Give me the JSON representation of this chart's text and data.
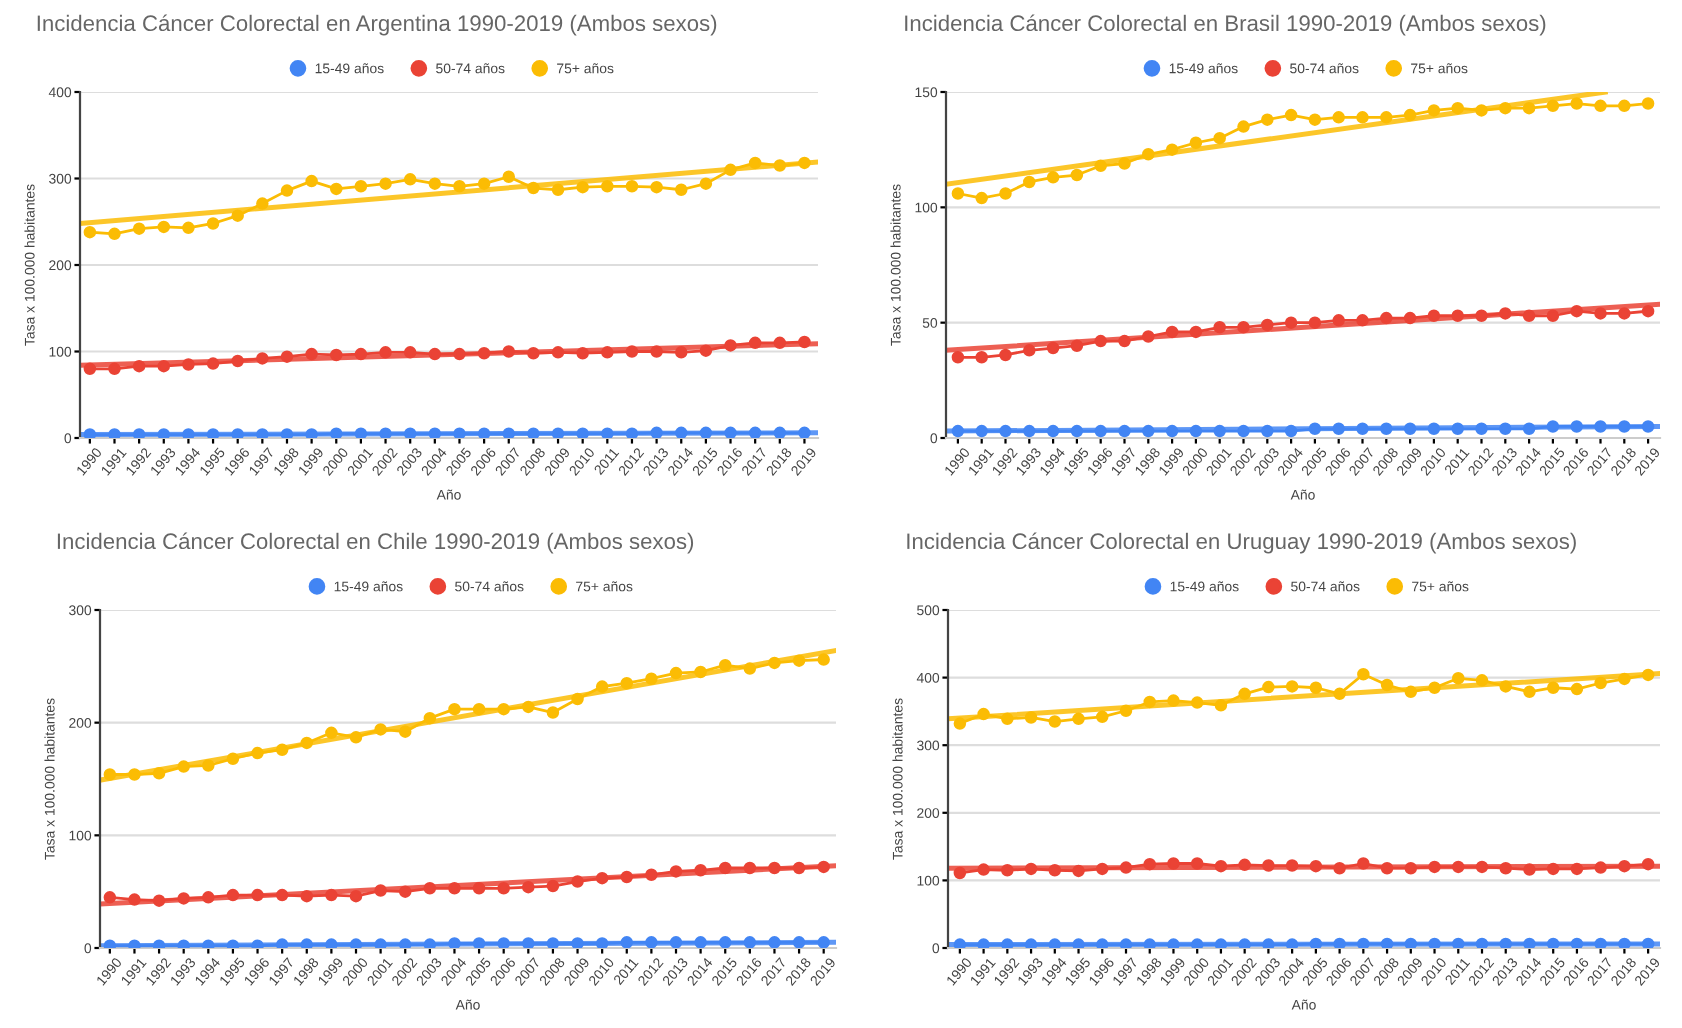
{
  "chart_data": [
    {
      "type": "line",
      "title": "Incidencia Cáncer Colorectal en Argentina 1990-2019 (Ambos sexos)",
      "xlabel": "Año",
      "ylabel": "Tasa x 100.000 habitantes",
      "x": [
        1990,
        1991,
        1992,
        1993,
        1994,
        1995,
        1996,
        1997,
        1998,
        1999,
        2000,
        2001,
        2002,
        2003,
        2004,
        2005,
        2006,
        2007,
        2008,
        2009,
        2010,
        2011,
        2012,
        2013,
        2014,
        2015,
        2016,
        2017,
        2018,
        2019
      ],
      "xlim": [
        1989.6,
        2019.55
      ],
      "xticks": [
        1990,
        1991,
        1992,
        1993,
        1994,
        1995,
        1996,
        1997,
        1998,
        1999,
        2000,
        2001,
        2002,
        2003,
        2004,
        2005,
        2006,
        2007,
        2008,
        2009,
        2010,
        2011,
        2012,
        2013,
        2014,
        2015,
        2016,
        2017,
        2018,
        2019
      ],
      "ylim": [
        0,
        400
      ],
      "yticks": [
        0,
        100,
        200,
        300,
        400
      ],
      "grid": "y",
      "legend": "top",
      "marker": "circle",
      "series": [
        {
          "name": "15-49 años",
          "color": "#4285f4",
          "values": [
            4,
            4,
            4,
            4,
            4,
            4,
            4,
            4,
            4,
            4,
            5,
            5,
            5,
            5,
            5,
            5,
            5,
            5,
            5,
            5,
            5,
            5,
            5,
            6,
            6,
            6,
            6,
            6,
            6,
            6
          ]
        },
        {
          "name": "50-74 años",
          "color": "#ea4335",
          "values": [
            80,
            80,
            83,
            83,
            85,
            86,
            89,
            92,
            94,
            97,
            96,
            97,
            99,
            99,
            97,
            97,
            98,
            100,
            98,
            99,
            98,
            99,
            100,
            100,
            99,
            101,
            107,
            110,
            110,
            111
          ]
        },
        {
          "name": "75+ años",
          "color": "#fbbc04",
          "values": [
            238,
            236,
            242,
            244,
            243,
            248,
            257,
            271,
            286,
            297,
            288,
            291,
            294,
            299,
            294,
            291,
            294,
            302,
            289,
            287,
            290,
            291,
            291,
            290,
            287,
            294,
            310,
            318,
            315,
            318
          ]
        },
        {
          "type": "line",
          "color": "#4285f4",
          "marker": "none",
          "x": [
            1989.6,
            2019.55
          ],
          "values": [
            4,
            6
          ]
        },
        {
          "type": "line",
          "color": "#ea4335",
          "marker": "none",
          "x": [
            1989.6,
            2019.55
          ],
          "values": [
            84,
            109
          ]
        },
        {
          "type": "line",
          "color": "#fbbc04",
          "marker": "none",
          "x": [
            1989.6,
            2019.55
          ],
          "values": [
            248,
            319
          ]
        }
      ]
    },
    {
      "type": "line",
      "title": "Incidencia Cáncer Colorectal en Brasil 1990-2019 (Ambos sexos)",
      "xlabel": "Año",
      "ylabel": "Tasa x 100.000 habitantes",
      "x": [
        1990,
        1991,
        1992,
        1993,
        1994,
        1995,
        1996,
        1997,
        1998,
        1999,
        2000,
        2001,
        2002,
        2003,
        2004,
        2005,
        2006,
        2007,
        2008,
        2009,
        2010,
        2011,
        2012,
        2013,
        2014,
        2015,
        2016,
        2017,
        2018,
        2019
      ],
      "xlim": [
        1989.5,
        2019.5
      ],
      "xticks": [
        1990,
        1991,
        1992,
        1993,
        1994,
        1995,
        1996,
        1997,
        1998,
        1999,
        2000,
        2001,
        2002,
        2003,
        2004,
        2005,
        2006,
        2007,
        2008,
        2009,
        2010,
        2011,
        2012,
        2013,
        2014,
        2015,
        2016,
        2017,
        2018,
        2019
      ],
      "ylim": [
        0,
        150
      ],
      "yticks": [
        0,
        50,
        100,
        150
      ],
      "grid": "y",
      "legend": "top",
      "marker": "circle",
      "series": [
        {
          "name": "15-49 años",
          "color": "#4285f4",
          "values": [
            3,
            3,
            3,
            3,
            3,
            3,
            3,
            3,
            3,
            3,
            3,
            3,
            3,
            3,
            3,
            4,
            4,
            4,
            4,
            4,
            4,
            4,
            4,
            4,
            4,
            5,
            5,
            5,
            5,
            5
          ]
        },
        {
          "name": "50-74 años",
          "color": "#ea4335",
          "values": [
            35,
            35,
            36,
            38,
            39,
            40,
            42,
            42,
            44,
            46,
            46,
            48,
            48,
            49,
            50,
            50,
            51,
            51,
            52,
            52,
            53,
            53,
            53,
            54,
            53,
            53,
            55,
            54,
            54,
            55
          ]
        },
        {
          "name": "75+ años",
          "color": "#fbbc04",
          "values": [
            106,
            104,
            106,
            111,
            113,
            114,
            118,
            119,
            123,
            125,
            128,
            130,
            135,
            138,
            140,
            138,
            139,
            139,
            139,
            140,
            142,
            143,
            142,
            143,
            143,
            144,
            145,
            144,
            144,
            145
          ]
        },
        {
          "type": "line",
          "color": "#4285f4",
          "marker": "none",
          "x": [
            1989.5,
            2019.5
          ],
          "values": [
            3,
            5
          ]
        },
        {
          "type": "line",
          "color": "#ea4335",
          "marker": "none",
          "x": [
            1989.5,
            2019.5
          ],
          "values": [
            38,
            58
          ]
        },
        {
          "type": "line",
          "color": "#fbbc04",
          "marker": "none",
          "x": [
            1989.5,
            2017.2
          ],
          "values": [
            110,
            150
          ]
        }
      ]
    },
    {
      "type": "line",
      "title": "Incidencia Cáncer Colorectal en Chile 1990-2019 (Ambos sexos)",
      "xlabel": "Año",
      "ylabel": "Tasa x 100.000 habitantes",
      "x": [
        1990,
        1991,
        1992,
        1993,
        1994,
        1995,
        1996,
        1997,
        1998,
        1999,
        2000,
        2001,
        2002,
        2003,
        2004,
        2005,
        2006,
        2007,
        2008,
        2009,
        2010,
        2011,
        2012,
        2013,
        2014,
        2015,
        2016,
        2017,
        2018,
        2019
      ],
      "xlim": [
        1989.6,
        2019.5
      ],
      "xticks": [
        1990,
        1991,
        1992,
        1993,
        1994,
        1995,
        1996,
        1997,
        1998,
        1999,
        2000,
        2001,
        2002,
        2003,
        2004,
        2005,
        2006,
        2007,
        2008,
        2009,
        2010,
        2011,
        2012,
        2013,
        2014,
        2015,
        2016,
        2017,
        2018,
        2019
      ],
      "ylim": [
        0,
        300
      ],
      "yticks": [
        0,
        100,
        200,
        300
      ],
      "grid": "y",
      "legend": "top",
      "marker": "circle",
      "series": [
        {
          "name": "15-49 años",
          "color": "#4285f4",
          "values": [
            2,
            2,
            2,
            2,
            2,
            2,
            2,
            3,
            3,
            3,
            3,
            3,
            3,
            3,
            4,
            4,
            4,
            4,
            4,
            4,
            4,
            5,
            5,
            5,
            5,
            5,
            5,
            5,
            5,
            5
          ]
        },
        {
          "name": "50-74 años",
          "color": "#ea4335",
          "values": [
            45,
            43,
            42,
            44,
            45,
            47,
            47,
            47,
            46,
            47,
            46,
            51,
            50,
            53,
            53,
            53,
            53,
            54,
            55,
            59,
            62,
            63,
            65,
            68,
            69,
            71,
            71,
            71,
            71,
            72
          ]
        },
        {
          "name": "75+ años",
          "color": "#fbbc04",
          "values": [
            154,
            154,
            155,
            161,
            162,
            168,
            173,
            176,
            182,
            191,
            187,
            194,
            192,
            204,
            212,
            212,
            212,
            214,
            209,
            221,
            232,
            235,
            239,
            244,
            245,
            251,
            248,
            253,
            255,
            256
          ]
        },
        {
          "type": "line",
          "color": "#4285f4",
          "marker": "none",
          "x": [
            1989.6,
            2019.5
          ],
          "values": [
            2,
            5
          ]
        },
        {
          "type": "line",
          "color": "#ea4335",
          "marker": "none",
          "x": [
            1989.6,
            2019.5
          ],
          "values": [
            39,
            73
          ]
        },
        {
          "type": "line",
          "color": "#fbbc04",
          "marker": "none",
          "x": [
            1989.6,
            2019.5
          ],
          "values": [
            149,
            264
          ]
        }
      ]
    },
    {
      "type": "line",
      "title": "Incidencia Cáncer Colorectal en Uruguay 1990-2019 (Ambos sexos)",
      "xlabel": "Año",
      "ylabel": "Tasa x 100.000 habitantes",
      "x": [
        1990,
        1991,
        1992,
        1993,
        1994,
        1995,
        1996,
        1997,
        1998,
        1999,
        2000,
        2001,
        2002,
        2003,
        2004,
        2005,
        2006,
        2007,
        2008,
        2009,
        2010,
        2011,
        2012,
        2013,
        2014,
        2015,
        2016,
        2017,
        2018,
        2019
      ],
      "xlim": [
        1989.5,
        2019.5
      ],
      "xticks": [
        1990,
        1991,
        1992,
        1993,
        1994,
        1995,
        1996,
        1997,
        1998,
        1999,
        2000,
        2001,
        2002,
        2003,
        2004,
        2005,
        2006,
        2007,
        2008,
        2009,
        2010,
        2011,
        2012,
        2013,
        2014,
        2015,
        2016,
        2017,
        2018,
        2019
      ],
      "ylim": [
        0,
        500
      ],
      "yticks": [
        0,
        100,
        200,
        300,
        400,
        500
      ],
      "grid": "y",
      "legend": "top",
      "marker": "circle",
      "series": [
        {
          "name": "15-49 años",
          "color": "#4285f4",
          "values": [
            5,
            5,
            5,
            5,
            5,
            5,
            5,
            5,
            5,
            5,
            5,
            5,
            5,
            5,
            5,
            6,
            6,
            6,
            6,
            6,
            6,
            6,
            6,
            6,
            6,
            6,
            6,
            6,
            6,
            6
          ]
        },
        {
          "name": "50-74 años",
          "color": "#ea4335",
          "values": [
            111,
            116,
            115,
            117,
            115,
            114,
            117,
            119,
            124,
            125,
            125,
            121,
            123,
            122,
            122,
            121,
            118,
            125,
            118,
            118,
            120,
            120,
            120,
            118,
            116,
            117,
            117,
            119,
            121,
            124
          ]
        },
        {
          "name": "75+ años",
          "color": "#fbbc04",
          "values": [
            332,
            346,
            339,
            341,
            335,
            339,
            342,
            351,
            364,
            366,
            363,
            359,
            376,
            386,
            387,
            385,
            376,
            405,
            389,
            379,
            385,
            399,
            396,
            387,
            379,
            385,
            383,
            392,
            398,
            404
          ]
        },
        {
          "type": "line",
          "color": "#4285f4",
          "marker": "none",
          "x": [
            1989.5,
            2019.5
          ],
          "values": [
            5,
            6
          ]
        },
        {
          "type": "line",
          "color": "#ea4335",
          "marker": "none",
          "x": [
            1989.5,
            2019.5
          ],
          "values": [
            118,
            121
          ]
        },
        {
          "type": "line",
          "color": "#fbbc04",
          "marker": "none",
          "x": [
            1989.5,
            2019.5
          ],
          "values": [
            339,
            406
          ]
        }
      ]
    }
  ]
}
